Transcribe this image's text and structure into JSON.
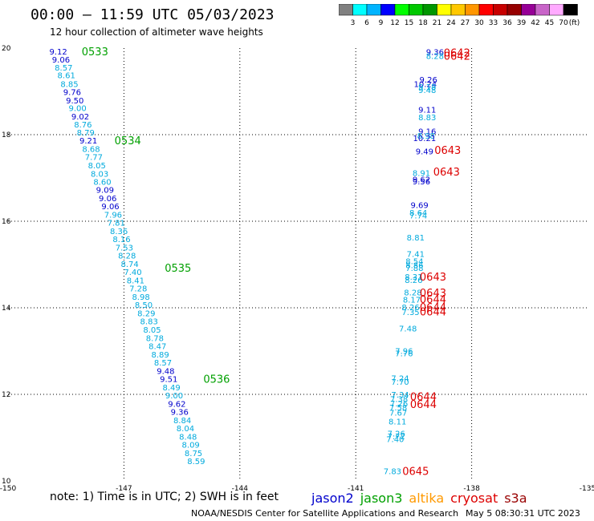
{
  "header": {
    "title": "00:00 – 11:59 UTC 05/03/2023",
    "subtitle": "12 hour collection of altimeter wave heights"
  },
  "footer": {
    "notes": "note:  1) Time is in UTC;  2) SWH is in feet",
    "credit": "NOAA/NESDIS Center for Satellite Applications and Research",
    "timestamp": "May  5 08:30:31 UTC 2023"
  },
  "legend": {
    "satellites": [
      {
        "name": "jason2",
        "color": "#0000cc"
      },
      {
        "name": "jason3",
        "color": "#00a000"
      },
      {
        "name": "altika",
        "color": "#ff9900"
      },
      {
        "name": "cryosat",
        "color": "#dd0000"
      },
      {
        "name": "s3a",
        "color": "#990000"
      }
    ]
  },
  "colorbar": {
    "unit": "(ft)",
    "ticks": [
      "3",
      "6",
      "9",
      "12",
      "15",
      "18",
      "21",
      "24",
      "27",
      "30",
      "33",
      "36",
      "39",
      "42",
      "45",
      "70"
    ],
    "colors": [
      "#808080",
      "#00ffff",
      "#00b4ff",
      "#0000ff",
      "#00ff00",
      "#00c800",
      "#009600",
      "#ffff00",
      "#ffc800",
      "#ff9600",
      "#ff0000",
      "#c80000",
      "#960000",
      "#960096",
      "#c864c8",
      "#ffaaff",
      "#000000"
    ]
  },
  "chart_data": {
    "type": "scatter",
    "xlim": [
      -150,
      -135
    ],
    "ylim": [
      10,
      20
    ],
    "xticks": [
      "-150",
      "-147",
      "-144",
      "-141",
      "-138",
      "-135"
    ],
    "yticks": [
      "20",
      "18",
      "16",
      "14",
      "12",
      "10"
    ],
    "grid": true,
    "point_colors": {
      "light": "#00aadd",
      "dark": "#0000cc"
    },
    "track_a": [
      {
        "v": "9.12",
        "x": -148.7,
        "y": 19.93,
        "c": "dark"
      },
      {
        "v": "9.06",
        "x": -148.63,
        "y": 19.74,
        "c": "dark"
      },
      {
        "v": "8.57",
        "x": -148.56,
        "y": 19.56,
        "c": "light"
      },
      {
        "v": "8.61",
        "x": -148.49,
        "y": 19.38,
        "c": "light"
      },
      {
        "v": "8.85",
        "x": -148.41,
        "y": 19.18,
        "c": "light"
      },
      {
        "v": "9.76",
        "x": -148.34,
        "y": 18.99,
        "c": "dark"
      },
      {
        "v": "9.50",
        "x": -148.27,
        "y": 18.8,
        "c": "dark"
      },
      {
        "v": "9.00",
        "x": -148.2,
        "y": 18.62,
        "c": "light"
      },
      {
        "v": "9.02",
        "x": -148.13,
        "y": 18.43,
        "c": "dark"
      },
      {
        "v": "8.76",
        "x": -148.06,
        "y": 18.24,
        "c": "light"
      },
      {
        "v": "8.79",
        "x": -147.99,
        "y": 18.06,
        "c": "light"
      },
      {
        "v": "9.21",
        "x": -147.92,
        "y": 17.87,
        "c": "dark"
      },
      {
        "v": "8.68",
        "x": -147.85,
        "y": 17.68,
        "c": "light"
      },
      {
        "v": "7.77",
        "x": -147.78,
        "y": 17.49,
        "c": "light"
      },
      {
        "v": "8.05",
        "x": -147.7,
        "y": 17.3,
        "c": "light"
      },
      {
        "v": "8.03",
        "x": -147.63,
        "y": 17.1,
        "c": "light"
      },
      {
        "v": "8.60",
        "x": -147.56,
        "y": 16.92,
        "c": "light"
      },
      {
        "v": "9.09",
        "x": -147.49,
        "y": 16.73,
        "c": "dark"
      },
      {
        "v": "9.06",
        "x": -147.42,
        "y": 16.54,
        "c": "dark"
      },
      {
        "v": "9.06",
        "x": -147.35,
        "y": 16.35,
        "c": "dark"
      },
      {
        "v": "7.96",
        "x": -147.28,
        "y": 16.16,
        "c": "light"
      },
      {
        "v": "7.81",
        "x": -147.2,
        "y": 15.97,
        "c": "light"
      },
      {
        "v": "8.36",
        "x": -147.13,
        "y": 15.78,
        "c": "light"
      },
      {
        "v": "8.16",
        "x": -147.06,
        "y": 15.59,
        "c": "light"
      },
      {
        "v": "7.53",
        "x": -146.99,
        "y": 15.4,
        "c": "light"
      },
      {
        "v": "8.28",
        "x": -146.92,
        "y": 15.21,
        "c": "light"
      },
      {
        "v": "8.74",
        "x": -146.85,
        "y": 15.02,
        "c": "light"
      },
      {
        "v": "7.40",
        "x": -146.77,
        "y": 14.83,
        "c": "light"
      },
      {
        "v": "8.41",
        "x": -146.7,
        "y": 14.64,
        "c": "light"
      },
      {
        "v": "7.28",
        "x": -146.63,
        "y": 14.45,
        "c": "light"
      },
      {
        "v": "8.98",
        "x": -146.56,
        "y": 14.26,
        "c": "light"
      },
      {
        "v": "8.50",
        "x": -146.49,
        "y": 14.07,
        "c": "light"
      },
      {
        "v": "8.29",
        "x": -146.42,
        "y": 13.88,
        "c": "light"
      },
      {
        "v": "8.83",
        "x": -146.35,
        "y": 13.69,
        "c": "light"
      },
      {
        "v": "8.05",
        "x": -146.27,
        "y": 13.5,
        "c": "light"
      },
      {
        "v": "8.78",
        "x": -146.2,
        "y": 13.31,
        "c": "light"
      },
      {
        "v": "8.47",
        "x": -146.13,
        "y": 13.12,
        "c": "light"
      },
      {
        "v": "8.89",
        "x": -146.06,
        "y": 12.93,
        "c": "light"
      },
      {
        "v": "8.57",
        "x": -145.99,
        "y": 12.74,
        "c": "light"
      },
      {
        "v": "9.48",
        "x": -145.92,
        "y": 12.55,
        "c": "dark"
      },
      {
        "v": "9.51",
        "x": -145.84,
        "y": 12.36,
        "c": "dark"
      },
      {
        "v": "8.49",
        "x": -145.77,
        "y": 12.17,
        "c": "light"
      },
      {
        "v": "9.00",
        "x": -145.7,
        "y": 11.98,
        "c": "light"
      },
      {
        "v": "9.62",
        "x": -145.63,
        "y": 11.79,
        "c": "dark"
      },
      {
        "v": "9.36",
        "x": -145.56,
        "y": 11.6,
        "c": "dark"
      },
      {
        "v": "8.84",
        "x": -145.49,
        "y": 11.41,
        "c": "light"
      },
      {
        "v": "8.04",
        "x": -145.41,
        "y": 11.22,
        "c": "light"
      },
      {
        "v": "8.48",
        "x": -145.34,
        "y": 11.03,
        "c": "light"
      },
      {
        "v": "8.09",
        "x": -145.27,
        "y": 10.84,
        "c": "light"
      },
      {
        "v": "8.75",
        "x": -145.2,
        "y": 10.65,
        "c": "light"
      },
      {
        "v": "8.59",
        "x": -145.13,
        "y": 10.46,
        "c": "light"
      }
    ],
    "track_a_times": [
      {
        "t": "0533",
        "x": -147.75,
        "y": 19.93
      },
      {
        "t": "0534",
        "x": -146.9,
        "y": 17.87
      },
      {
        "t": "0535",
        "x": -145.6,
        "y": 14.93
      },
      {
        "t": "0536",
        "x": -144.6,
        "y": 12.36
      }
    ],
    "track_b": [
      {
        "v": "9.36",
        "x": -138.95,
        "y": 19.92,
        "c": "dark"
      },
      {
        "v": "8.28",
        "x": -138.95,
        "y": 19.82,
        "c": "light"
      },
      {
        "v": "9.26",
        "x": -139.12,
        "y": 19.28,
        "c": "dark"
      },
      {
        "v": "10.24",
        "x": -139.2,
        "y": 19.18,
        "c": "dark"
      },
      {
        "v": "9.18",
        "x": -139.15,
        "y": 19.11,
        "c": "light"
      },
      {
        "v": "9.48",
        "x": -139.15,
        "y": 19.04,
        "c": "light"
      },
      {
        "v": "9.11",
        "x": -139.15,
        "y": 18.58,
        "c": "dark"
      },
      {
        "v": "8.83",
        "x": -139.15,
        "y": 18.41,
        "c": "light"
      },
      {
        "v": "9.16",
        "x": -139.15,
        "y": 18.08,
        "c": "dark"
      },
      {
        "v": "8.98",
        "x": -139.18,
        "y": 17.98,
        "c": "light"
      },
      {
        "v": "10.21",
        "x": -139.22,
        "y": 17.93,
        "c": "dark"
      },
      {
        "v": "9.49",
        "x": -139.22,
        "y": 17.62,
        "c": "dark"
      },
      {
        "v": "8.91",
        "x": -139.3,
        "y": 17.12,
        "c": "light"
      },
      {
        "v": "9.62",
        "x": -139.3,
        "y": 16.97,
        "c": "dark"
      },
      {
        "v": "9.56",
        "x": -139.3,
        "y": 16.93,
        "c": "dark"
      },
      {
        "v": "9.69",
        "x": -139.35,
        "y": 16.38,
        "c": "dark"
      },
      {
        "v": "8.64",
        "x": -139.38,
        "y": 16.2,
        "c": "light"
      },
      {
        "v": "7.74",
        "x": -139.38,
        "y": 16.14,
        "c": "light"
      },
      {
        "v": "8.81",
        "x": -139.45,
        "y": 15.63,
        "c": "light"
      },
      {
        "v": "7.41",
        "x": -139.45,
        "y": 15.25,
        "c": "light"
      },
      {
        "v": "8.54",
        "x": -139.48,
        "y": 15.08,
        "c": "light"
      },
      {
        "v": "8.86",
        "x": -139.48,
        "y": 14.99,
        "c": "light"
      },
      {
        "v": "7.88",
        "x": -139.48,
        "y": 14.93,
        "c": "light"
      },
      {
        "v": "8.31",
        "x": -139.5,
        "y": 14.72,
        "c": "light"
      },
      {
        "v": "8.26",
        "x": -139.5,
        "y": 14.65,
        "c": "light"
      },
      {
        "v": "8.28",
        "x": -139.52,
        "y": 14.36,
        "c": "light"
      },
      {
        "v": "8.17",
        "x": -139.55,
        "y": 14.19,
        "c": "light"
      },
      {
        "v": "8.26",
        "x": -139.58,
        "y": 14.02,
        "c": "light"
      },
      {
        "v": "7.35",
        "x": -139.58,
        "y": 13.91,
        "c": "light"
      },
      {
        "v": "7.48",
        "x": -139.65,
        "y": 13.53,
        "c": "light"
      },
      {
        "v": "7.96",
        "x": -139.75,
        "y": 13.01,
        "c": "light"
      },
      {
        "v": "7.76",
        "x": -139.75,
        "y": 12.95,
        "c": "light"
      },
      {
        "v": "7.24",
        "x": -139.85,
        "y": 12.38,
        "c": "light"
      },
      {
        "v": "7.70",
        "x": -139.85,
        "y": 12.3,
        "c": "light"
      },
      {
        "v": "7.34",
        "x": -139.85,
        "y": 12.0,
        "c": "light"
      },
      {
        "v": "7.38",
        "x": -139.88,
        "y": 11.9,
        "c": "light"
      },
      {
        "v": "7.26",
        "x": -139.88,
        "y": 11.8,
        "c": "light"
      },
      {
        "v": "7.58",
        "x": -139.9,
        "y": 11.7,
        "c": "light"
      },
      {
        "v": "7.67",
        "x": -139.9,
        "y": 11.58,
        "c": "light"
      },
      {
        "v": "8.11",
        "x": -139.92,
        "y": 11.38,
        "c": "light"
      },
      {
        "v": "7.26",
        "x": -139.95,
        "y": 11.1,
        "c": "light"
      },
      {
        "v": "7.72",
        "x": -139.95,
        "y": 11.04,
        "c": "light"
      },
      {
        "v": "7.40",
        "x": -139.98,
        "y": 10.97,
        "c": "light"
      },
      {
        "v": "7.83",
        "x": -140.05,
        "y": 10.23,
        "c": "light"
      }
    ],
    "track_b_times": [
      {
        "t": "0642",
        "x": -138.38,
        "y": 19.9
      },
      {
        "t": "0642",
        "x": -138.38,
        "y": 19.82
      },
      {
        "t": "0643",
        "x": -138.62,
        "y": 17.65
      },
      {
        "t": "0643",
        "x": -138.65,
        "y": 17.15
      },
      {
        "t": "0643",
        "x": -139.0,
        "y": 14.72
      },
      {
        "t": "0643",
        "x": -139.0,
        "y": 14.35
      },
      {
        "t": "0644",
        "x": -139.0,
        "y": 14.2
      },
      {
        "t": "0644",
        "x": -139.0,
        "y": 14.02
      },
      {
        "t": "0644",
        "x": -139.0,
        "y": 13.92
      },
      {
        "t": "0644",
        "x": -139.25,
        "y": 11.95
      },
      {
        "t": "0644",
        "x": -139.25,
        "y": 11.78
      },
      {
        "t": "0645",
        "x": -139.45,
        "y": 10.23
      }
    ]
  }
}
